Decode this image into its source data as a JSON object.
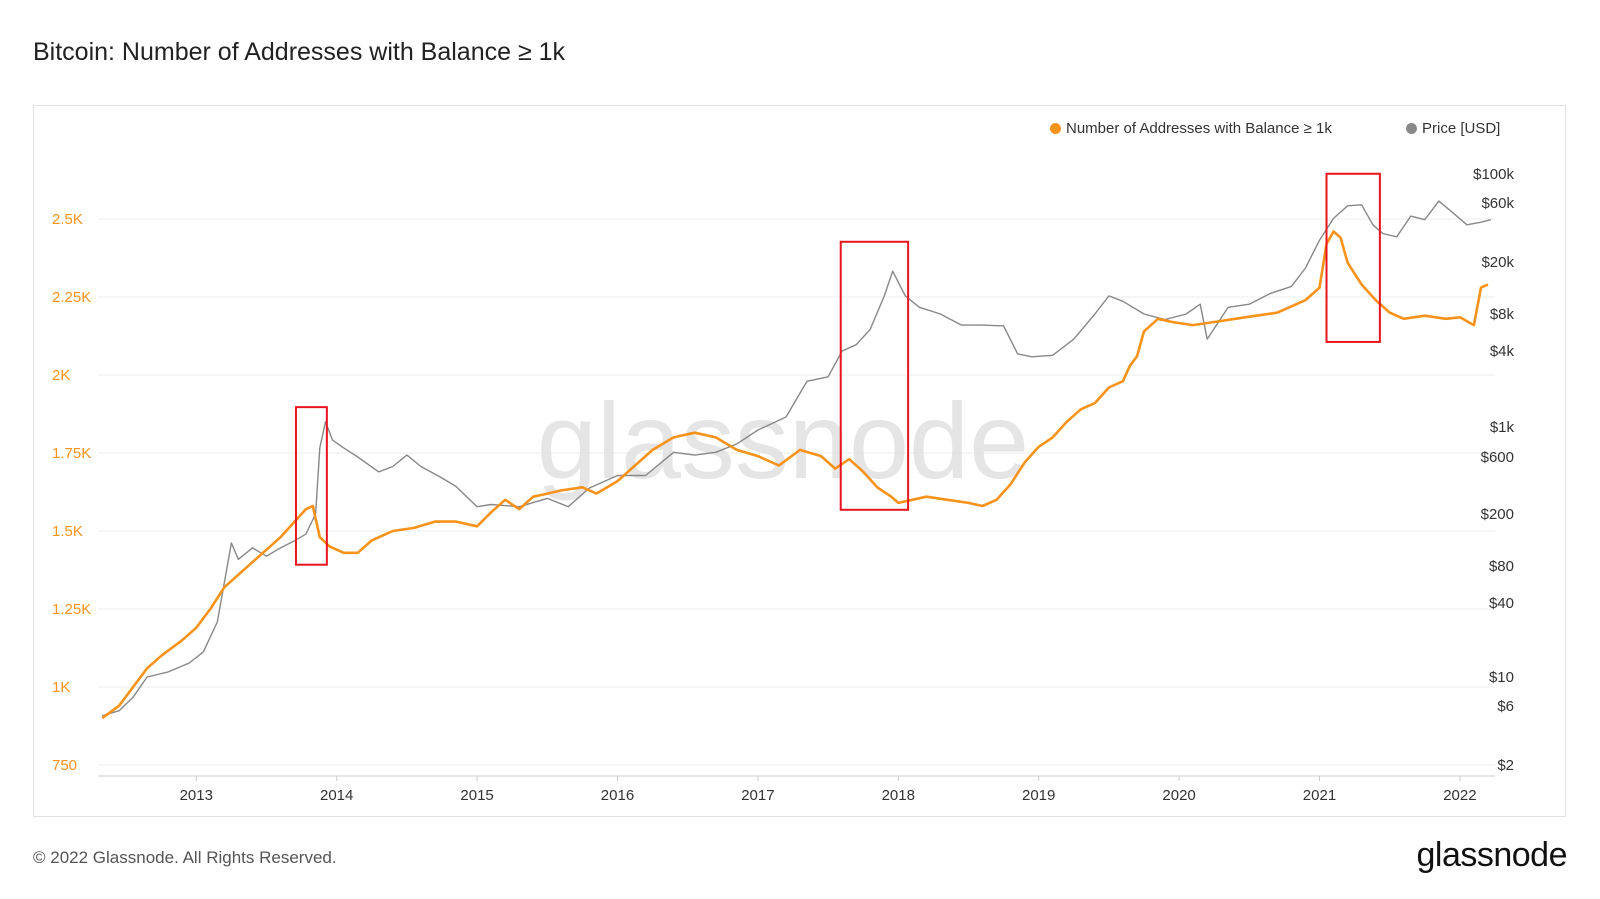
{
  "page": {
    "title": "Bitcoin: Number of Addresses with Balance ≥ 1k",
    "copyright": "© 2022 Glassnode. All Rights Reserved.",
    "brand": "glassnode",
    "watermark": "glassnode"
  },
  "chart_data": {
    "type": "line",
    "title": "Bitcoin: Number of Addresses with Balance ≥ 1k",
    "x_ticks": [
      "2013",
      "2014",
      "2015",
      "2016",
      "2017",
      "2018",
      "2019",
      "2020",
      "2021",
      "2022"
    ],
    "xlim": [
      2012.3,
      2022.25
    ],
    "left_axis": {
      "ticks": [
        750,
        1000,
        1250,
        1500,
        1750,
        2000,
        2250,
        2500
      ],
      "tick_labels": [
        "750",
        "1K",
        "1.25K",
        "1.5K",
        "1.75K",
        "2K",
        "2.25K",
        "2.5K"
      ],
      "ylim": [
        750,
        2500
      ],
      "color": "#f7931a"
    },
    "right_axis": {
      "scale": "log",
      "ticks": [
        2,
        6,
        10,
        40,
        80,
        200,
        600,
        1000,
        4000,
        8000,
        20000,
        60000,
        100000
      ],
      "tick_labels": [
        "$2",
        "$6",
        "$10",
        "$40",
        "$80",
        "$200",
        "$600",
        "$1k",
        "$4k",
        "$8k",
        "$20k",
        "$60k",
        "$100k"
      ],
      "color": "#333333"
    },
    "legend": {
      "placement": "top-right"
    },
    "grid": true,
    "series": [
      {
        "name": "Number of Addresses with Balance ≥ 1k",
        "axis": "left",
        "color": "#f7931a",
        "points": [
          [
            2012.33,
            900
          ],
          [
            2012.45,
            940
          ],
          [
            2012.55,
            1000
          ],
          [
            2012.65,
            1060
          ],
          [
            2012.75,
            1100
          ],
          [
            2012.9,
            1150
          ],
          [
            2013.0,
            1190
          ],
          [
            2013.1,
            1250
          ],
          [
            2013.2,
            1320
          ],
          [
            2013.3,
            1360
          ],
          [
            2013.4,
            1400
          ],
          [
            2013.5,
            1440
          ],
          [
            2013.6,
            1480
          ],
          [
            2013.7,
            1530
          ],
          [
            2013.78,
            1570
          ],
          [
            2013.83,
            1580
          ],
          [
            2013.88,
            1480
          ],
          [
            2013.95,
            1450
          ],
          [
            2014.05,
            1430
          ],
          [
            2014.15,
            1430
          ],
          [
            2014.25,
            1470
          ],
          [
            2014.4,
            1500
          ],
          [
            2014.55,
            1510
          ],
          [
            2014.7,
            1530
          ],
          [
            2014.85,
            1530
          ],
          [
            2015.0,
            1515
          ],
          [
            2015.1,
            1560
          ],
          [
            2015.2,
            1600
          ],
          [
            2015.3,
            1570
          ],
          [
            2015.4,
            1610
          ],
          [
            2015.5,
            1620
          ],
          [
            2015.6,
            1630
          ],
          [
            2015.75,
            1640
          ],
          [
            2015.85,
            1620
          ],
          [
            2016.0,
            1660
          ],
          [
            2016.1,
            1700
          ],
          [
            2016.25,
            1760
          ],
          [
            2016.4,
            1800
          ],
          [
            2016.55,
            1815
          ],
          [
            2016.7,
            1800
          ],
          [
            2016.85,
            1760
          ],
          [
            2017.0,
            1740
          ],
          [
            2017.15,
            1710
          ],
          [
            2017.3,
            1760
          ],
          [
            2017.45,
            1740
          ],
          [
            2017.55,
            1700
          ],
          [
            2017.65,
            1730
          ],
          [
            2017.75,
            1690
          ],
          [
            2017.85,
            1640
          ],
          [
            2017.95,
            1610
          ],
          [
            2018.0,
            1590
          ],
          [
            2018.1,
            1600
          ],
          [
            2018.2,
            1610
          ],
          [
            2018.35,
            1600
          ],
          [
            2018.5,
            1590
          ],
          [
            2018.6,
            1580
          ],
          [
            2018.7,
            1600
          ],
          [
            2018.8,
            1650
          ],
          [
            2018.9,
            1720
          ],
          [
            2019.0,
            1770
          ],
          [
            2019.1,
            1800
          ],
          [
            2019.2,
            1850
          ],
          [
            2019.3,
            1890
          ],
          [
            2019.4,
            1910
          ],
          [
            2019.5,
            1960
          ],
          [
            2019.6,
            1980
          ],
          [
            2019.65,
            2030
          ],
          [
            2019.7,
            2060
          ],
          [
            2019.75,
            2140
          ],
          [
            2019.85,
            2180
          ],
          [
            2019.95,
            2170
          ],
          [
            2020.1,
            2160
          ],
          [
            2020.25,
            2170
          ],
          [
            2020.4,
            2180
          ],
          [
            2020.55,
            2190
          ],
          [
            2020.7,
            2200
          ],
          [
            2020.8,
            2220
          ],
          [
            2020.9,
            2240
          ],
          [
            2021.0,
            2280
          ],
          [
            2021.05,
            2420
          ],
          [
            2021.1,
            2460
          ],
          [
            2021.15,
            2440
          ],
          [
            2021.2,
            2360
          ],
          [
            2021.3,
            2290
          ],
          [
            2021.4,
            2240
          ],
          [
            2021.5,
            2200
          ],
          [
            2021.6,
            2180
          ],
          [
            2021.75,
            2190
          ],
          [
            2021.9,
            2180
          ],
          [
            2022.0,
            2185
          ],
          [
            2022.1,
            2160
          ],
          [
            2022.15,
            2280
          ],
          [
            2022.2,
            2290
          ]
        ]
      },
      {
        "name": "Price [USD]",
        "axis": "right",
        "color": "#888888",
        "points": [
          [
            2012.33,
            5
          ],
          [
            2012.45,
            5.5
          ],
          [
            2012.55,
            7
          ],
          [
            2012.65,
            10
          ],
          [
            2012.8,
            11
          ],
          [
            2012.95,
            13
          ],
          [
            2013.05,
            16
          ],
          [
            2013.15,
            28
          ],
          [
            2013.25,
            120
          ],
          [
            2013.3,
            90
          ],
          [
            2013.4,
            110
          ],
          [
            2013.5,
            95
          ],
          [
            2013.6,
            110
          ],
          [
            2013.7,
            125
          ],
          [
            2013.78,
            140
          ],
          [
            2013.85,
            200
          ],
          [
            2013.88,
            700
          ],
          [
            2013.92,
            1100
          ],
          [
            2013.97,
            800
          ],
          [
            2014.05,
            700
          ],
          [
            2014.15,
            600
          ],
          [
            2014.3,
            450
          ],
          [
            2014.4,
            500
          ],
          [
            2014.5,
            620
          ],
          [
            2014.6,
            500
          ],
          [
            2014.75,
            400
          ],
          [
            2014.85,
            340
          ],
          [
            2015.0,
            230
          ],
          [
            2015.1,
            240
          ],
          [
            2015.3,
            230
          ],
          [
            2015.5,
            270
          ],
          [
            2015.65,
            230
          ],
          [
            2015.8,
            330
          ],
          [
            2016.0,
            420
          ],
          [
            2016.2,
            420
          ],
          [
            2016.4,
            650
          ],
          [
            2016.55,
            620
          ],
          [
            2016.7,
            650
          ],
          [
            2016.85,
            750
          ],
          [
            2017.0,
            950
          ],
          [
            2017.2,
            1200
          ],
          [
            2017.35,
            2300
          ],
          [
            2017.5,
            2500
          ],
          [
            2017.6,
            4000
          ],
          [
            2017.7,
            4500
          ],
          [
            2017.8,
            6000
          ],
          [
            2017.9,
            11000
          ],
          [
            2017.96,
            17000
          ],
          [
            2018.05,
            11000
          ],
          [
            2018.15,
            9000
          ],
          [
            2018.3,
            8000
          ],
          [
            2018.45,
            6500
          ],
          [
            2018.6,
            6500
          ],
          [
            2018.75,
            6400
          ],
          [
            2018.85,
            3800
          ],
          [
            2018.95,
            3600
          ],
          [
            2019.1,
            3700
          ],
          [
            2019.25,
            5000
          ],
          [
            2019.4,
            8000
          ],
          [
            2019.5,
            11000
          ],
          [
            2019.6,
            10000
          ],
          [
            2019.75,
            8000
          ],
          [
            2019.9,
            7200
          ],
          [
            2020.05,
            8000
          ],
          [
            2020.15,
            9500
          ],
          [
            2020.2,
            5000
          ],
          [
            2020.35,
            9000
          ],
          [
            2020.5,
            9500
          ],
          [
            2020.65,
            11500
          ],
          [
            2020.8,
            13000
          ],
          [
            2020.9,
            18000
          ],
          [
            2021.0,
            30000
          ],
          [
            2021.1,
            45000
          ],
          [
            2021.2,
            57000
          ],
          [
            2021.3,
            58000
          ],
          [
            2021.38,
            40000
          ],
          [
            2021.45,
            34000
          ],
          [
            2021.55,
            32000
          ],
          [
            2021.65,
            47000
          ],
          [
            2021.75,
            44000
          ],
          [
            2021.85,
            62000
          ],
          [
            2021.95,
            50000
          ],
          [
            2022.05,
            40000
          ],
          [
            2022.15,
            42000
          ],
          [
            2022.22,
            44000
          ]
        ]
      }
    ],
    "annotations": [
      {
        "type": "box",
        "x": [
          2013.71,
          2013.93
        ],
        "y_left": [
          1392,
          1897
        ]
      },
      {
        "type": "box",
        "x": [
          2017.59,
          2018.07
        ],
        "y_left": [
          1568,
          2427
        ]
      },
      {
        "type": "box",
        "x": [
          2021.05,
          2021.43
        ],
        "y_left": [
          2106,
          2645
        ]
      }
    ]
  }
}
